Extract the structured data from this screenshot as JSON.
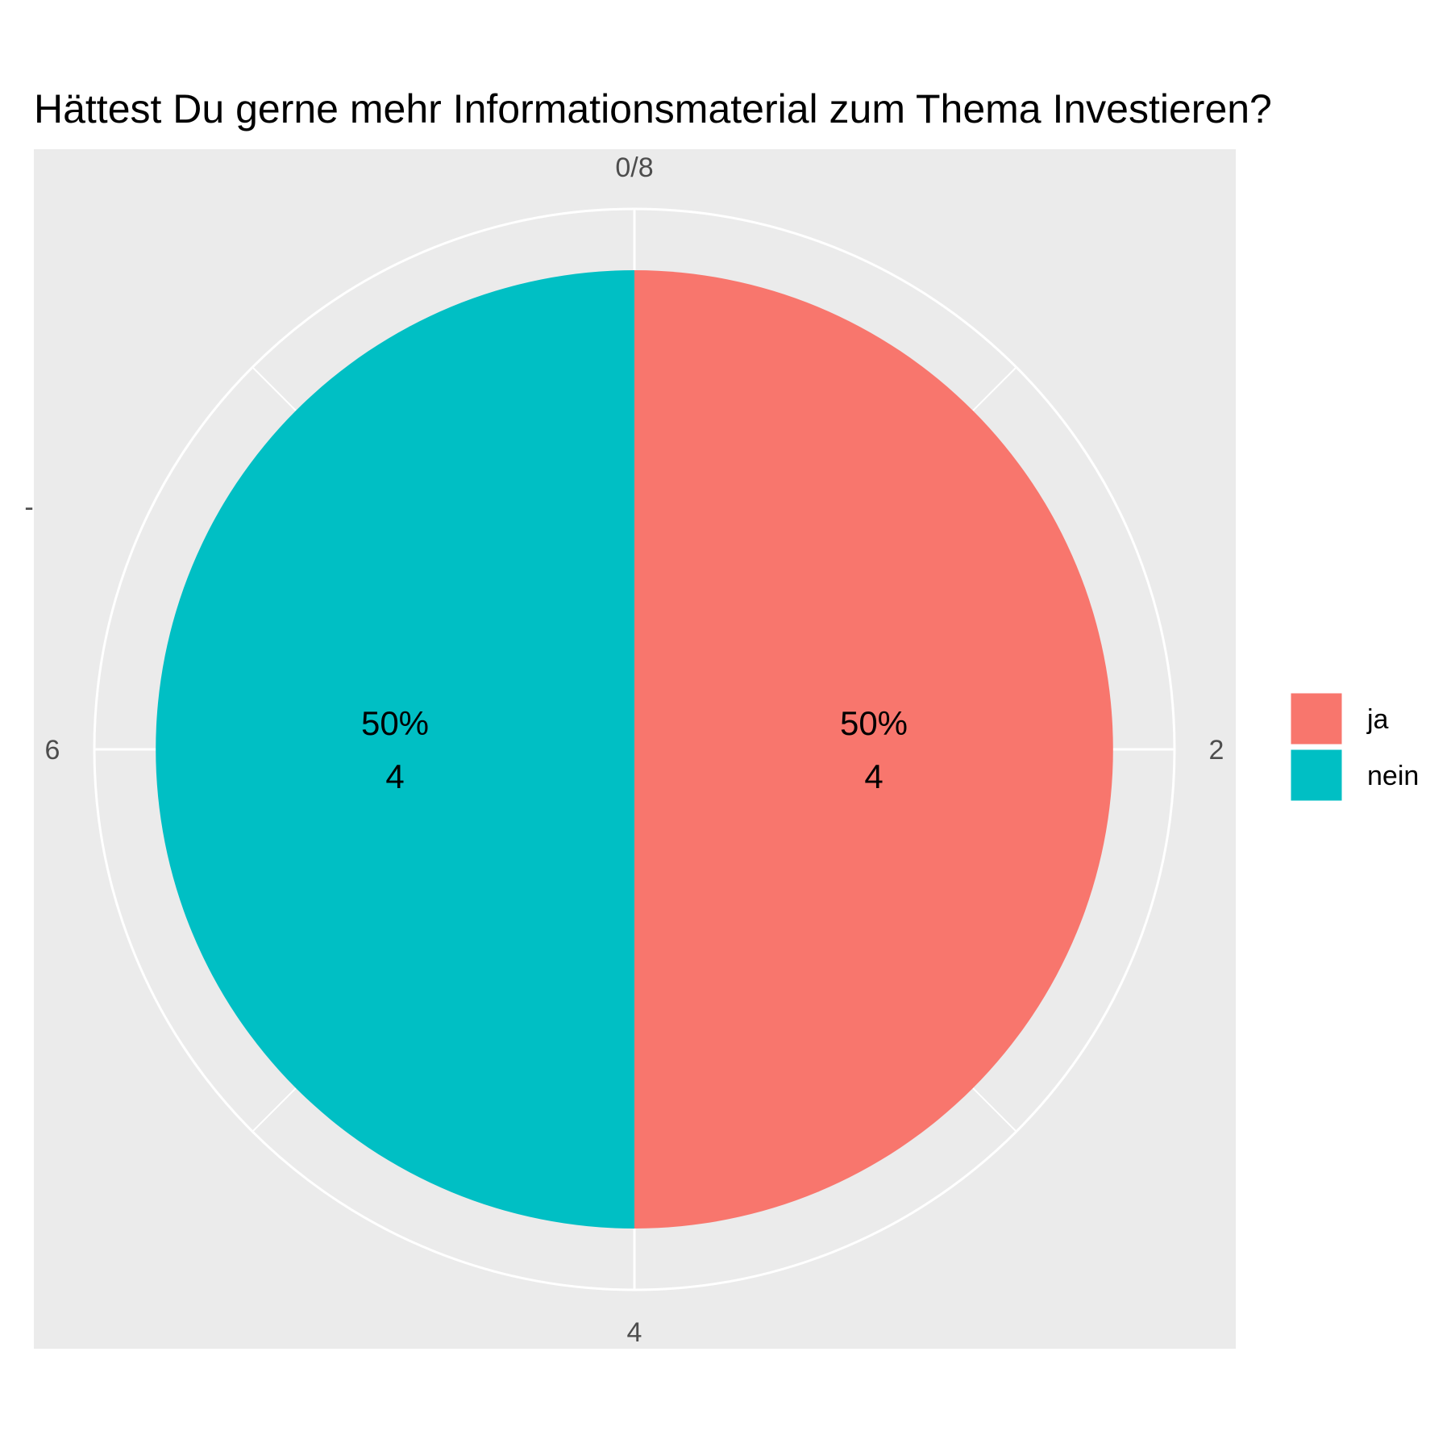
{
  "chart_data": {
    "type": "pie",
    "title": "Hättest Du gerne mehr Informationsmaterial zum Thema Investieren?",
    "xlabel": "",
    "ylabel": "",
    "y_axis_tick_labels": [
      "-"
    ],
    "theta_tick_labels": [
      "0/8",
      "2",
      "4",
      "6"
    ],
    "theta_range": [
      0,
      8
    ],
    "grid": true,
    "legend_position": "right",
    "panel_background": "#ebebeb",
    "grid_color": "#ffffff",
    "slices": [
      {
        "label": "ja",
        "value": 4,
        "percent_label": "50%",
        "count_label": "4",
        "color": "#f8766d"
      },
      {
        "label": "nein",
        "value": 4,
        "percent_label": "50%",
        "count_label": "4",
        "color": "#00bfc4"
      }
    ]
  }
}
